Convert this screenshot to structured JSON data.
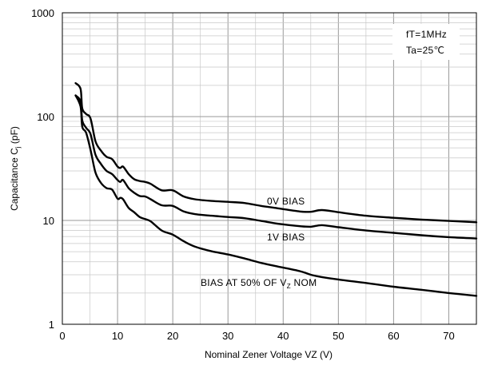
{
  "chart_data": {
    "type": "line",
    "xlabel": "Nominal Zener Voltage VZ (V)",
    "ylabel": "Capacitance C j (pF)",
    "ylabel_main": "Capacitance C",
    "ylabel_sub": "j",
    "ylabel_tail": " (pF)",
    "x_scale": "linear",
    "y_scale": "log",
    "xlim": [
      0,
      75
    ],
    "ylim": [
      1,
      1000
    ],
    "x_ticks": [
      "0",
      "10",
      "20",
      "30",
      "40",
      "50",
      "60",
      "70"
    ],
    "y_ticks": [
      "1",
      "10",
      "100",
      "1000"
    ],
    "grid": "major and minor gridlines on both axes",
    "conditions": [
      "fT=1MHz",
      "Ta=25℃"
    ],
    "series": [
      {
        "name": "0V BIAS",
        "x": [
          2.4,
          3.3,
          3.6,
          4.3,
          5.1,
          6.0,
          7.0,
          8.0,
          9.0,
          10.0,
          10.5,
          11.0,
          12.0,
          13.0,
          14.0,
          15.0,
          16.0,
          18.0,
          20.0,
          22.0,
          24.0,
          27.0,
          30.0,
          33.0,
          36.0,
          39.0,
          43.0,
          45.0,
          47.0,
          50.0,
          55.0,
          60.0,
          65.0,
          70.0,
          75.0
        ],
        "y": [
          210,
          185,
          120,
          106,
          96,
          58,
          47,
          41,
          39,
          33,
          32,
          33,
          28,
          25,
          24,
          23.5,
          22.5,
          19.5,
          19.5,
          17,
          16,
          15.4,
          15.1,
          14.7,
          13.8,
          13.1,
          12.2,
          12.1,
          12.6,
          12,
          11.1,
          10.6,
          10.2,
          9.9,
          9.6
        ]
      },
      {
        "name": "1V BIAS",
        "x": [
          2.4,
          3.3,
          3.6,
          4.3,
          5.1,
          6.0,
          7.0,
          8.0,
          9.0,
          10.0,
          10.5,
          11.0,
          12.0,
          13.0,
          14.0,
          15.0,
          16.0,
          18.0,
          20.0,
          22.0,
          24.0,
          27.0,
          30.0,
          33.0,
          36.0,
          39.0,
          43.0,
          45.0,
          47.0,
          50.0,
          55.0,
          60.0,
          65.0,
          70.0,
          75.0
        ],
        "y": [
          160,
          140,
          92,
          78,
          68,
          43,
          35,
          30,
          28,
          24.5,
          23.5,
          24.5,
          20.5,
          18.5,
          17.2,
          17,
          16,
          14,
          13.8,
          12.2,
          11.5,
          11.1,
          10.8,
          10.5,
          9.9,
          9.3,
          8.8,
          8.7,
          9,
          8.6,
          8,
          7.6,
          7.2,
          6.9,
          6.7
        ]
      },
      {
        "name": "BIAS AT 50% OF VZ NOM",
        "x": [
          2.4,
          3.3,
          3.6,
          4.3,
          5.1,
          6.0,
          7.0,
          8.0,
          9.0,
          10.0,
          10.5,
          11.0,
          12.0,
          13.0,
          14.0,
          15.0,
          16.0,
          18.0,
          20.0,
          22.0,
          24.0,
          27.0,
          30.0,
          33.0,
          36.0,
          39.0,
          43.0,
          45.0,
          47.0,
          50.0,
          55.0,
          60.0,
          65.0,
          70.0,
          75.0
        ],
        "y": [
          160,
          125,
          80,
          70,
          48,
          29,
          23,
          20.5,
          19.8,
          16.2,
          16.5,
          16,
          13.2,
          12,
          10.8,
          10.3,
          9.8,
          8,
          7.3,
          6.3,
          5.6,
          5.05,
          4.7,
          4.3,
          3.9,
          3.6,
          3.25,
          3,
          2.85,
          2.7,
          2.5,
          2.3,
          2.15,
          2,
          1.88
        ]
      }
    ],
    "annotations": {
      "s0": "0V  BIAS",
      "s1": "1V  BIAS",
      "s2_prefix": "BIAS AT 50% OF V",
      "s2_sub": "Z",
      "s2_suffix": " NOM"
    }
  }
}
